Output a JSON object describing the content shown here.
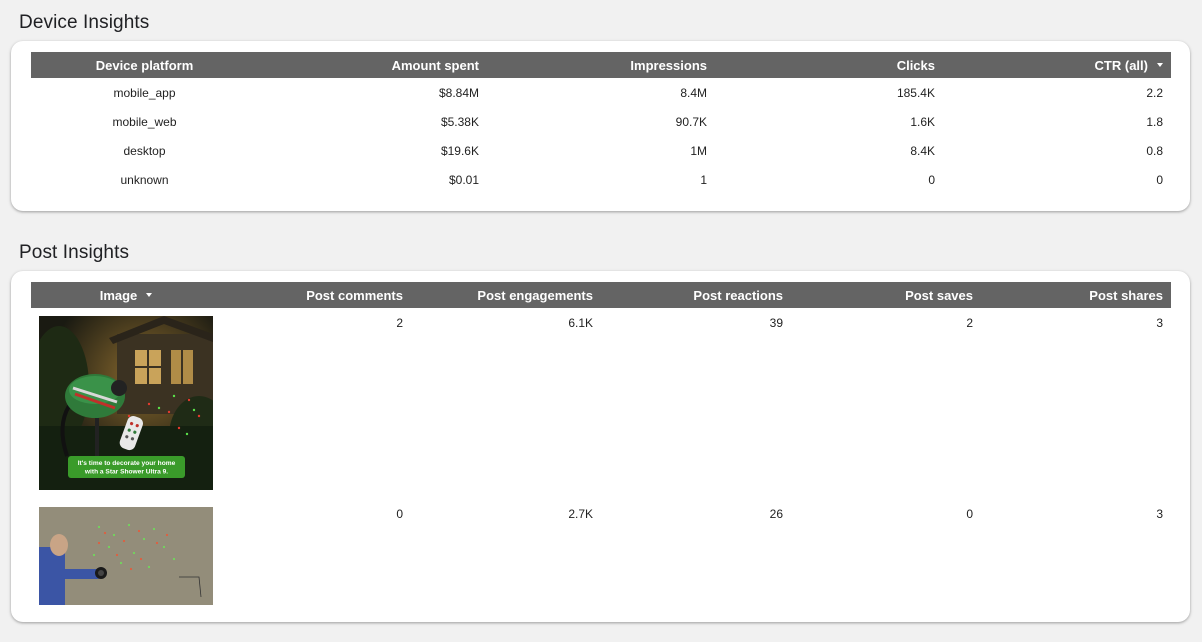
{
  "device_section": {
    "title": "Device Insights",
    "columns": [
      "Device platform",
      "Amount spent",
      "Impressions",
      "Clicks",
      "CTR (all)"
    ],
    "sorted_column_icon": "sort-descending-icon",
    "rows": [
      {
        "platform": "mobile_app",
        "spent": "$8.84M",
        "impressions": "8.4M",
        "clicks": "185.4K",
        "ctr": "2.2"
      },
      {
        "platform": "mobile_web",
        "spent": "$5.38K",
        "impressions": "90.7K",
        "clicks": "1.6K",
        "ctr": "1.8"
      },
      {
        "platform": "desktop",
        "spent": "$19.6K",
        "impressions": "1M",
        "clicks": "8.4K",
        "ctr": "0.8"
      },
      {
        "platform": "unknown",
        "spent": "$0.01",
        "impressions": "1",
        "clicks": "0",
        "ctr": "0"
      }
    ]
  },
  "post_section": {
    "title": "Post Insights",
    "columns": [
      "Image",
      "Post comments",
      "Post engagements",
      "Post reactions",
      "Post saves",
      "Post shares"
    ],
    "sorted_column_icon": "sort-descending-icon",
    "rows": [
      {
        "image_caption": "It's time to decorate your home with a Star Shower Ultra 9.",
        "comments": "2",
        "engagements": "6.1K",
        "reactions": "39",
        "saves": "2",
        "shares": "3"
      },
      {
        "image_caption": "",
        "comments": "0",
        "engagements": "2.7K",
        "reactions": "26",
        "saves": "0",
        "shares": "3"
      }
    ]
  },
  "colors": {
    "header_bg": "#646464",
    "page_bg": "#f1f1f1",
    "card_bg": "#ffffff",
    "caption_green": "#3a9b2a"
  }
}
